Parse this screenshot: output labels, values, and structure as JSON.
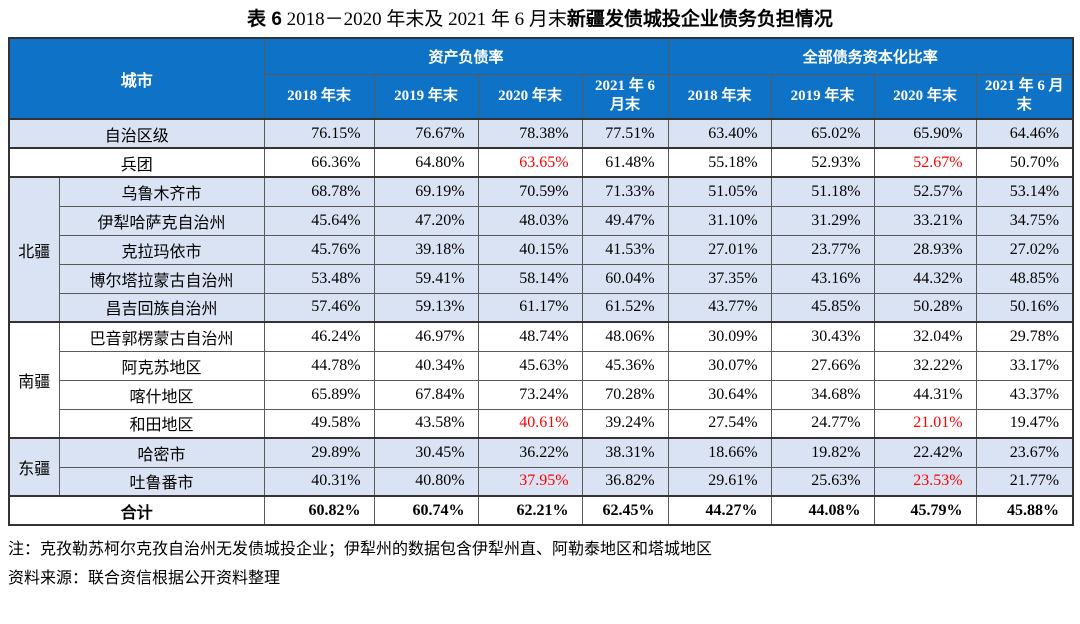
{
  "title": {
    "label": "表 6",
    "prefix": "  2018－2020 年末及 2021 年 6 月末",
    "emphasis": "新疆发债城投企业债务负担情况"
  },
  "colors": {
    "header_bg": "#0E72C6",
    "header_text": "#FFFFFF",
    "row_shade": "#DAE3F3",
    "highlight_red": "#FF0000"
  },
  "table": {
    "header": {
      "city_label": "城市",
      "sections": [
        {
          "label": "资产负债率",
          "cols": [
            "2018 年末",
            "2019 年末",
            "2020 年末",
            "2021 年 6 月末"
          ]
        },
        {
          "label": "全部债务资本化比率",
          "cols": [
            "2018 年末",
            "2019 年末",
            "2020 年末",
            "2021 年 6 月末"
          ]
        }
      ]
    },
    "rows": [
      {
        "city": "自治区级",
        "full_width": true,
        "shaded": true,
        "group_start": true,
        "values": [
          "76.15%",
          "76.67%",
          "78.38%",
          "77.51%",
          "63.40%",
          "65.02%",
          "65.90%",
          "64.46%"
        ],
        "red": []
      },
      {
        "city": "兵团",
        "full_width": true,
        "shaded": false,
        "group_start": true,
        "values": [
          "66.36%",
          "64.80%",
          "63.65%",
          "61.48%",
          "55.18%",
          "52.93%",
          "52.67%",
          "50.70%"
        ],
        "red": [
          2,
          6
        ]
      },
      {
        "region": "北疆",
        "region_rowspan": 5,
        "city": "乌鲁木齐市",
        "shaded": true,
        "group_start": true,
        "values": [
          "68.78%",
          "69.19%",
          "70.59%",
          "71.33%",
          "51.05%",
          "51.18%",
          "52.57%",
          "53.14%"
        ],
        "red": []
      },
      {
        "city": "伊犁哈萨克自治州",
        "shaded": true,
        "values": [
          "45.64%",
          "47.20%",
          "48.03%",
          "49.47%",
          "31.10%",
          "31.29%",
          "33.21%",
          "34.75%"
        ],
        "red": []
      },
      {
        "city": "克拉玛依市",
        "shaded": true,
        "values": [
          "45.76%",
          "39.18%",
          "40.15%",
          "41.53%",
          "27.01%",
          "23.77%",
          "28.93%",
          "27.02%"
        ],
        "red": []
      },
      {
        "city": "博尔塔拉蒙古自治州",
        "shaded": true,
        "values": [
          "53.48%",
          "59.41%",
          "58.14%",
          "60.04%",
          "37.35%",
          "43.16%",
          "44.32%",
          "48.85%"
        ],
        "red": []
      },
      {
        "city": "昌吉回族自治州",
        "shaded": true,
        "values": [
          "57.46%",
          "59.13%",
          "61.17%",
          "61.52%",
          "43.77%",
          "45.85%",
          "50.28%",
          "50.16%"
        ],
        "red": []
      },
      {
        "region": "南疆",
        "region_rowspan": 4,
        "city": "巴音郭楞蒙古自治州",
        "shaded": false,
        "group_start": true,
        "values": [
          "46.24%",
          "46.97%",
          "48.74%",
          "48.06%",
          "30.09%",
          "30.43%",
          "32.04%",
          "29.78%"
        ],
        "red": []
      },
      {
        "city": "阿克苏地区",
        "shaded": false,
        "values": [
          "44.78%",
          "40.34%",
          "45.63%",
          "45.36%",
          "30.07%",
          "27.66%",
          "32.22%",
          "33.17%"
        ],
        "red": []
      },
      {
        "city": "喀什地区",
        "shaded": false,
        "values": [
          "65.89%",
          "67.84%",
          "73.24%",
          "70.28%",
          "30.64%",
          "34.68%",
          "44.31%",
          "43.37%"
        ],
        "red": []
      },
      {
        "city": "和田地区",
        "shaded": false,
        "values": [
          "49.58%",
          "43.58%",
          "40.61%",
          "39.24%",
          "27.54%",
          "24.77%",
          "21.01%",
          "19.47%"
        ],
        "red": [
          2,
          6
        ]
      },
      {
        "region": "东疆",
        "region_rowspan": 2,
        "city": "哈密市",
        "shaded": true,
        "group_start": true,
        "values": [
          "29.89%",
          "30.45%",
          "36.22%",
          "38.31%",
          "18.66%",
          "19.82%",
          "22.42%",
          "23.67%"
        ],
        "red": []
      },
      {
        "city": "吐鲁番市",
        "shaded": true,
        "values": [
          "40.31%",
          "40.80%",
          "37.95%",
          "36.82%",
          "29.61%",
          "25.63%",
          "23.53%",
          "21.77%"
        ],
        "red": [
          2,
          6
        ]
      },
      {
        "city": "合计",
        "full_width": true,
        "shaded": false,
        "bold": true,
        "group_start": true,
        "values": [
          "60.82%",
          "60.74%",
          "62.21%",
          "62.45%",
          "44.27%",
          "44.08%",
          "45.79%",
          "45.88%"
        ],
        "red": []
      }
    ]
  },
  "notes": [
    "注：克孜勒苏柯尔克孜自治州无发债城投企业；伊犁州的数据包含伊犁州直、阿勒泰地区和塔城地区",
    "资料来源：联合资信根据公开资料整理"
  ]
}
